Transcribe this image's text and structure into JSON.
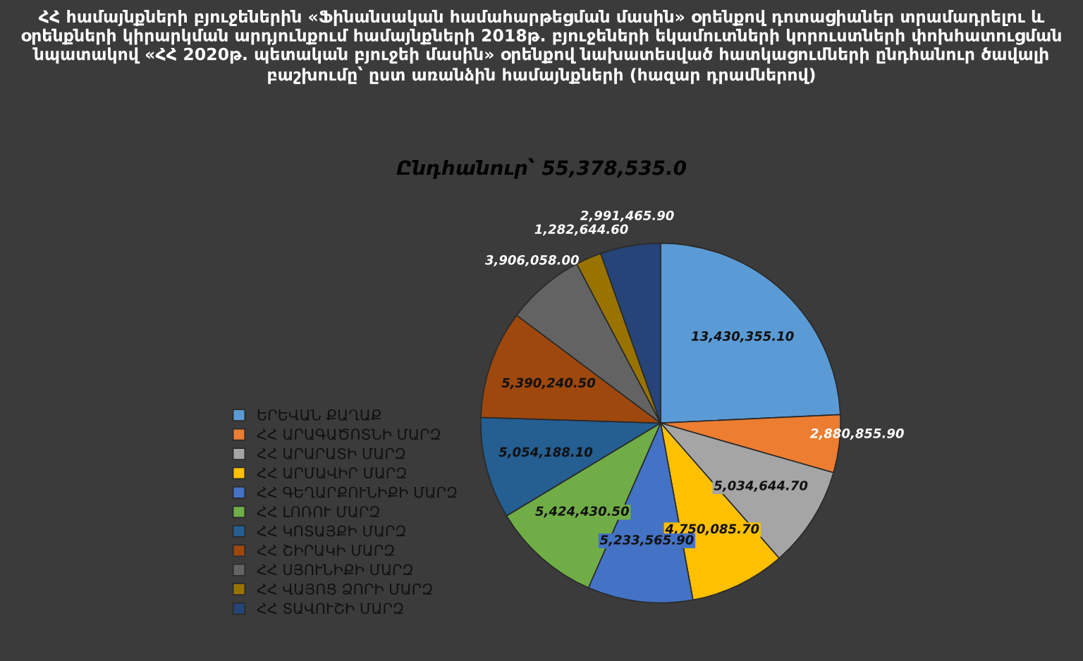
{
  "chart_data": {
    "type": "pie",
    "title": "ՀՀ համայնքների բյուջեներին «Ֆինանսական համահարթեցման մասին» օրենքով դոտացիաներ տրամադրելու և օրենքների կիրարկման արդյունքում համայնքների 2018թ. բյուջեների եկամուտների կորուստների փոխհատուցման նպատակով «ՀՀ 2020թ. պետական բյուջեի մասին» օրենքով նախատեսված հատկացումների ընդհանուր ծավալի բաշխումը՝ ըստ առանձին համայնքների (հազար դրամներով)",
    "subtitle": "Ընդհանուր՝ 55,378,535.0",
    "categories": [
      "ԵՐԵՎԱՆ ՔԱՂԱՔ",
      "ՀՀ ԱՐԱԳԱԾՈՏՆԻ ՄԱՐԶ",
      "ՀՀ ԱՐԱՐԱՏԻ ՄԱՐԶ",
      "ՀՀ ԱՐՄԱՎԻՐ ՄԱՐԶ",
      "ՀՀ ԳԵՂԱՐՔՈՒՆԻՔԻ ՄԱՐԶ",
      "ՀՀ ԼՈՌՈՒ ՄԱՐԶ",
      "ՀՀ ԿՈՏԱՅՔԻ ՄԱՐԶ",
      "ՀՀ ՇԻՐԱԿԻ ՄԱՐԶ",
      "ՀՀ ՍՅՈՒՆԻՔԻ ՄԱՐԶ",
      "ՀՀ ՎԱՅՈՑ ՁՈՐԻ ՄԱՐԶ",
      "ՀՀ ՏԱՎՈՒՇԻ ՄԱՐԶ"
    ],
    "values": [
      13430355.1,
      2880855.9,
      5034644.7,
      4750085.7,
      5233565.9,
      5424430.5,
      5054188.1,
      5390240.5,
      3906058.0,
      1282644.6,
      2991465.9
    ],
    "value_labels": [
      "13,430,355.10",
      "2,880,855.90",
      "5,034,644.70",
      "4,750,085.70",
      "5,233,565.90",
      "5,424,430.50",
      "5,054,188.10",
      "5,390,240.50",
      "3,906,058.00",
      "1,282,644.60",
      "2,991,465.90"
    ],
    "colors": [
      "#5b9bd5",
      "#ed7d31",
      "#a5a5a5",
      "#ffc000",
      "#4472c4",
      "#70ad47",
      "#255e91",
      "#9e480e",
      "#636363",
      "#997300",
      "#264478"
    ],
    "legend": "left"
  }
}
